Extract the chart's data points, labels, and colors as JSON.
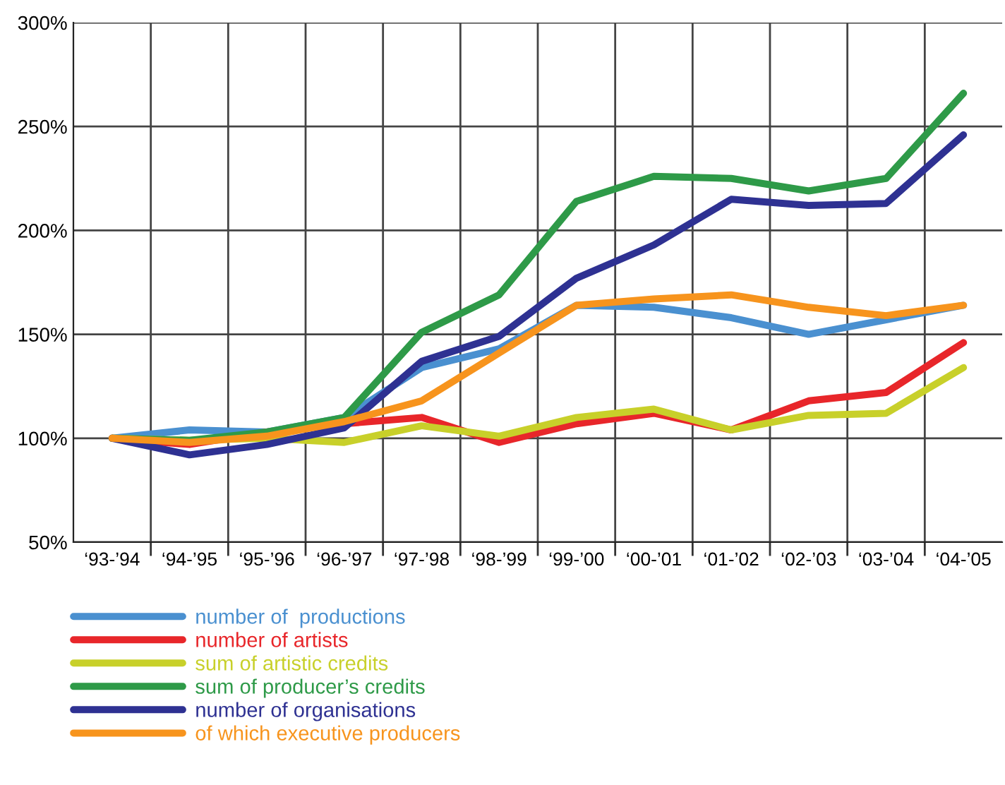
{
  "chart_data": {
    "type": "line",
    "categories": [
      "‘93-’94",
      "‘94-’95",
      "‘95-’96",
      "‘96-’97",
      "‘97-’98",
      "‘98-’99",
      "‘99-’00",
      "‘00-’01",
      "‘01-’02",
      "‘02-’03",
      "‘03-’04",
      "‘04-’05"
    ],
    "series": [
      {
        "name": "number of  productions",
        "color": "#4a90d0",
        "values": [
          100,
          104,
          103,
          110,
          134,
          143,
          164,
          163,
          158,
          150,
          157,
          164
        ]
      },
      {
        "name": "number of artists",
        "color": "#e8262a",
        "values": [
          100,
          97,
          103,
          107,
          110,
          98,
          107,
          112,
          104,
          118,
          122,
          146
        ]
      },
      {
        "name": "sum of artistic credits",
        "color": "#c8d02a",
        "values": [
          100,
          99,
          100,
          98,
          106,
          101,
          110,
          114,
          104,
          111,
          112,
          134
        ]
      },
      {
        "name": "sum of producer’s credits",
        "color": "#2e9a48",
        "values": [
          100,
          99,
          103,
          110,
          151,
          169,
          214,
          226,
          225,
          219,
          225,
          266
        ]
      },
      {
        "name": "number of organisations",
        "color": "#2e3192",
        "values": [
          100,
          92,
          97,
          105,
          137,
          149,
          177,
          193,
          215,
          212,
          213,
          246
        ]
      },
      {
        "name": "of which executive producers",
        "color": "#f7941d",
        "values": [
          100,
          98,
          101,
          108,
          118,
          141,
          164,
          167,
          169,
          163,
          159,
          164
        ]
      }
    ],
    "ylim": [
      50,
      300
    ],
    "yticks": [
      {
        "value": 50,
        "label": "50%"
      },
      {
        "value": 100,
        "label": "100%"
      },
      {
        "value": 150,
        "label": "150%"
      },
      {
        "value": 200,
        "label": "200%"
      },
      {
        "value": 250,
        "label": "250%"
      },
      {
        "value": 300,
        "label": "300%"
      }
    ],
    "grid": true,
    "legend": "bottom",
    "marker": "none",
    "line_style": "solid"
  }
}
